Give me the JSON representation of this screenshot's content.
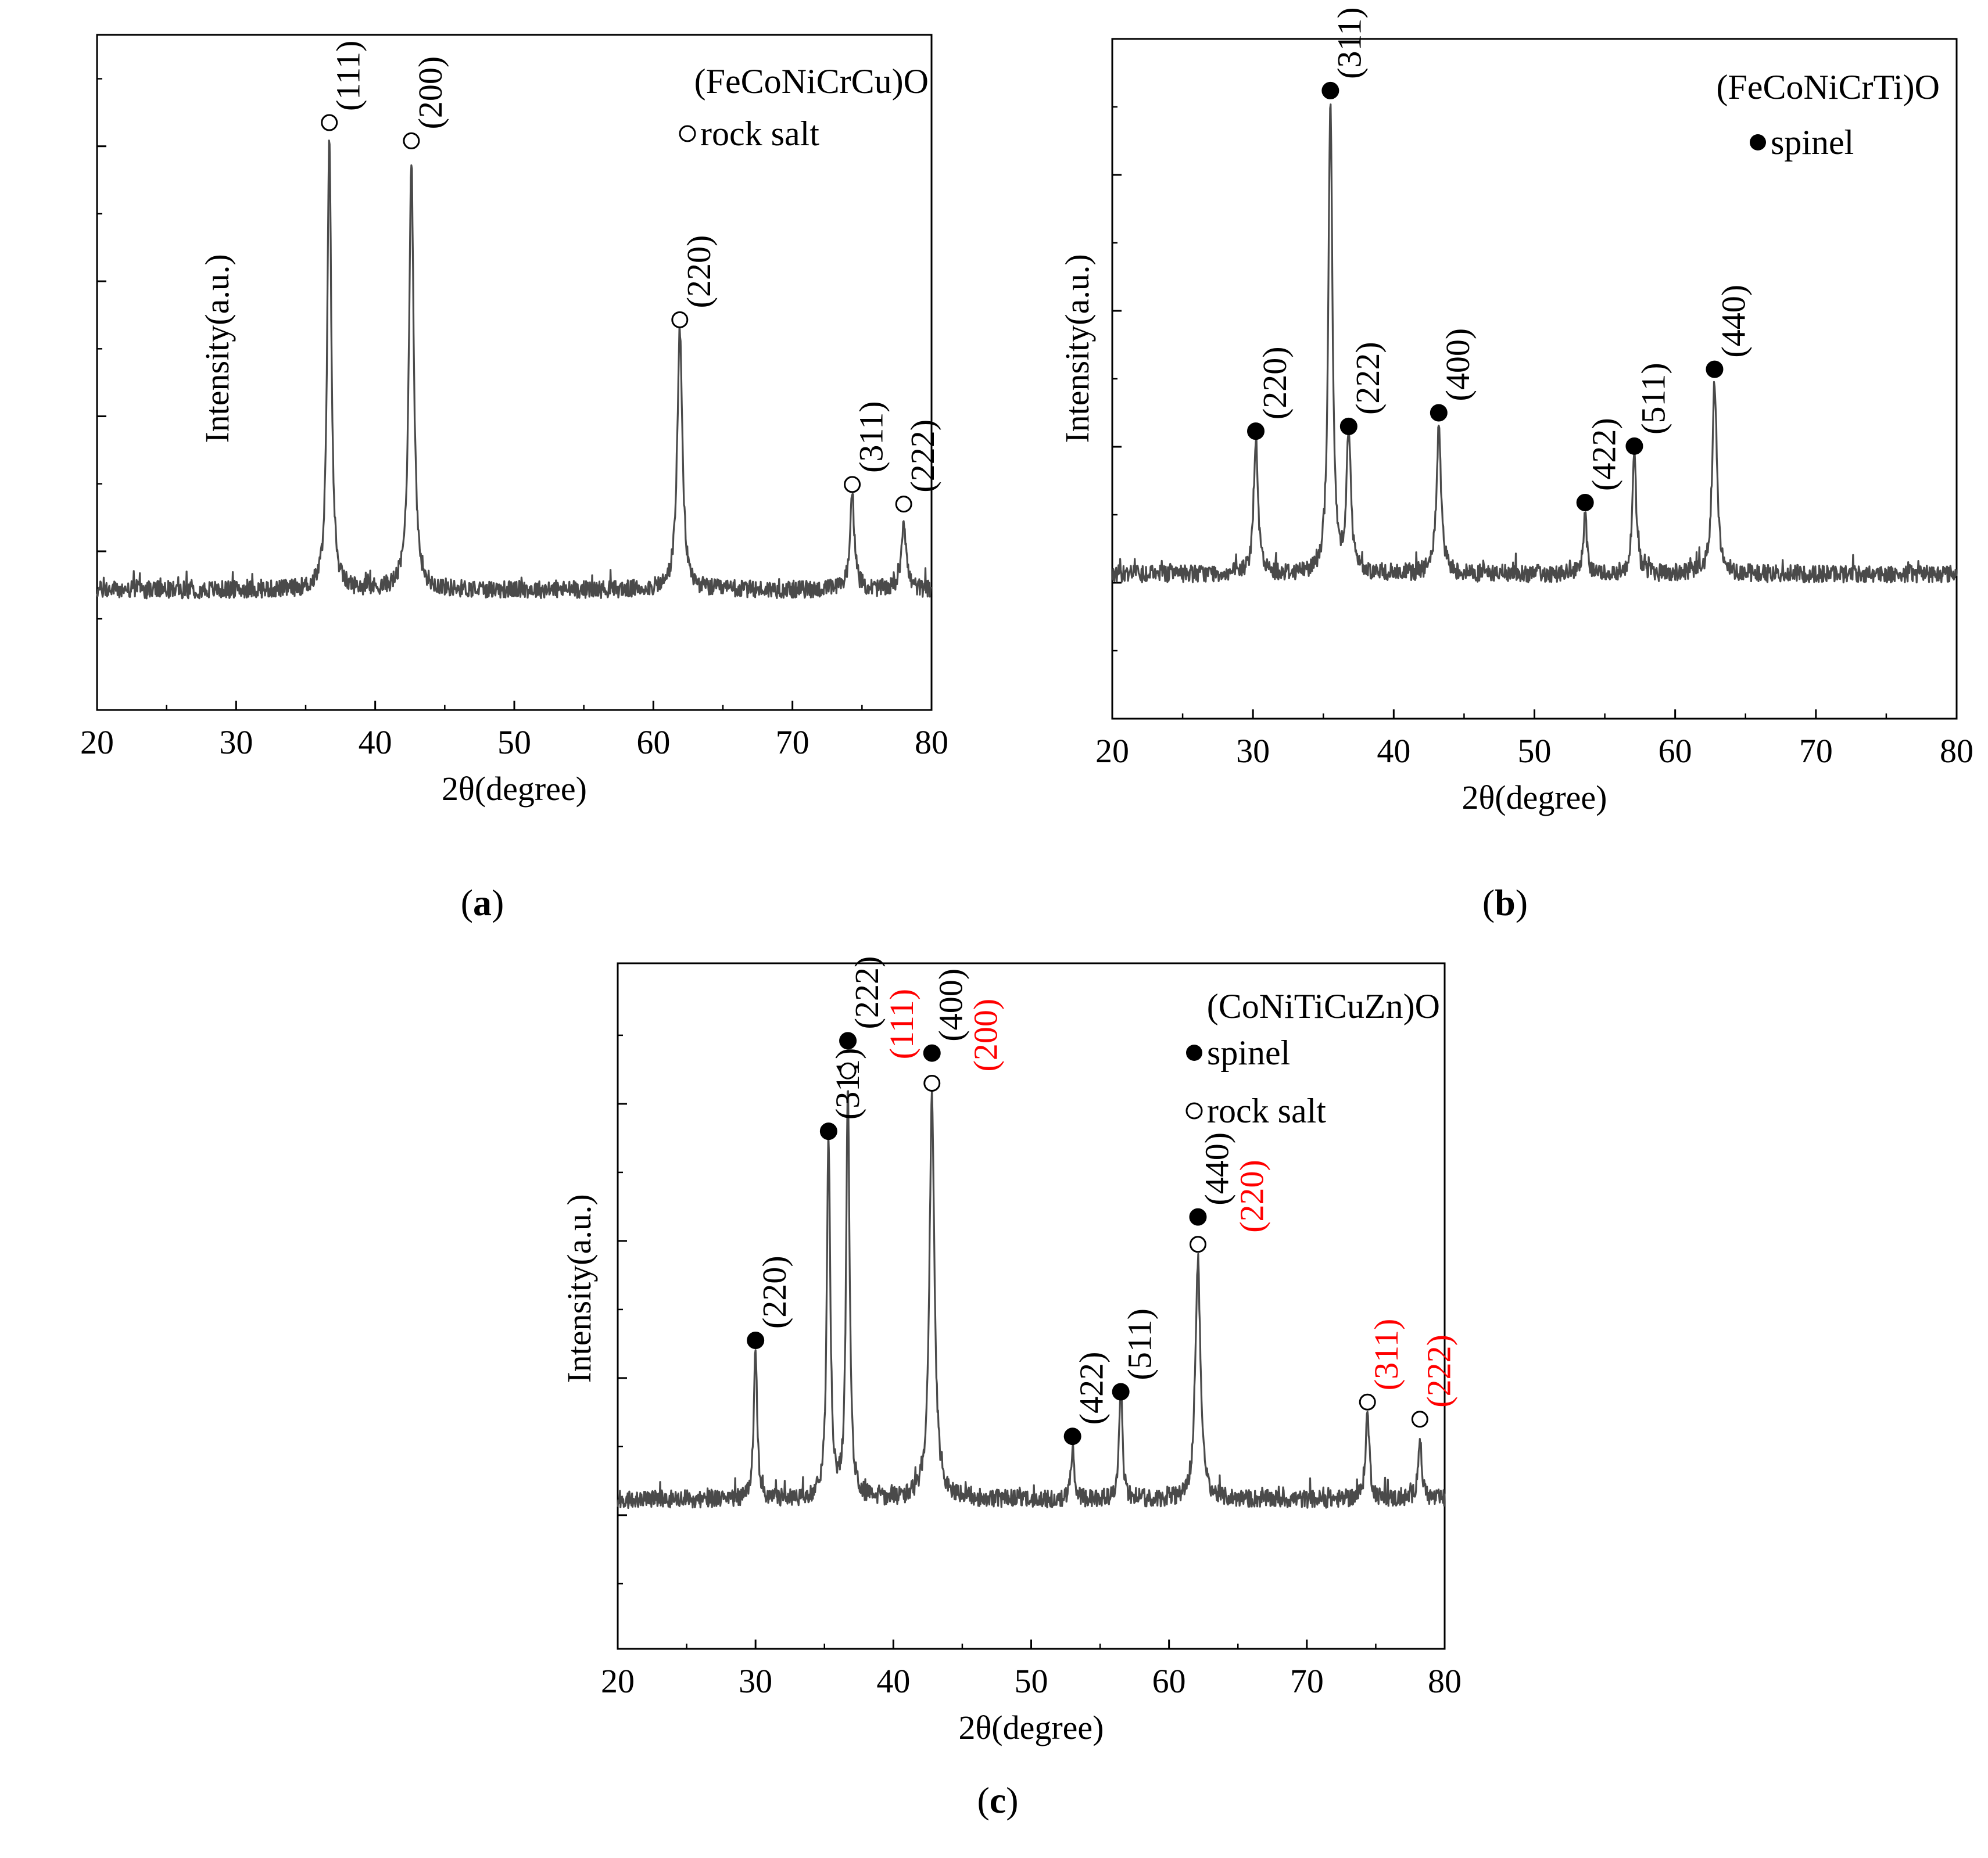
{
  "chart_data": [
    {
      "panel": "a",
      "panel_label": "(a)",
      "type": "line",
      "title": "(FeCoNiCrCu)O",
      "xlabel": "2θ(degree)",
      "ylabel": "Intensity(a.u.)",
      "xlim": [
        20,
        80
      ],
      "xticks": [
        20,
        30,
        40,
        50,
        60,
        70,
        80
      ],
      "ylim": [
        0,
        1
      ],
      "baseline": 0.165,
      "grid": false,
      "legend": [
        {
          "symbol": "open",
          "label": "rock salt"
        }
      ],
      "series": [
        {
          "name": "(FeCoNiCrCu)O",
          "color": "#4a4a4a",
          "peaks": [
            {
              "x": 36.7,
              "y": 0.845,
              "w": 0.17
            },
            {
              "x": 42.6,
              "y": 0.805,
              "w": 0.2
            },
            {
              "x": 61.9,
              "y": 0.55,
              "w": 0.22
            },
            {
              "x": 74.3,
              "y": 0.3,
              "w": 0.2
            },
            {
              "x": 78.0,
              "y": 0.27,
              "w": 0.2
            }
          ]
        }
      ],
      "annotations": [
        {
          "x": 36.7,
          "y": 0.87,
          "symbol": "open",
          "label": "(111)",
          "color": "#000000"
        },
        {
          "x": 42.6,
          "y": 0.843,
          "symbol": "open",
          "label": "(200)",
          "color": "#000000"
        },
        {
          "x": 61.9,
          "y": 0.578,
          "symbol": "open",
          "label": "(220)",
          "color": "#000000"
        },
        {
          "x": 74.3,
          "y": 0.334,
          "symbol": "open",
          "label": "(311)",
          "color": "#000000"
        },
        {
          "x": 78.0,
          "y": 0.305,
          "symbol": "open",
          "label": "(222)",
          "color": "#000000"
        }
      ]
    },
    {
      "panel": "b",
      "panel_label": "(b)",
      "type": "line",
      "title": "(FeCoNiCrTi)O",
      "xlabel": "2θ(degree)",
      "ylabel": "Intensity(a.u.)",
      "xlim": [
        20,
        80
      ],
      "xticks": [
        20,
        30,
        40,
        50,
        60,
        70,
        80
      ],
      "ylim": [
        0,
        1
      ],
      "baseline": 0.2,
      "grid": false,
      "legend": [
        {
          "symbol": "filled",
          "label": "spinel"
        }
      ],
      "series": [
        {
          "name": "(FeCoNiCrTi)O",
          "color": "#4a4a4a",
          "peaks": [
            {
              "x": 30.2,
              "y": 0.4,
              "w": 0.18
            },
            {
              "x": 35.5,
              "y": 0.9,
              "w": 0.17
            },
            {
              "x": 36.8,
              "y": 0.41,
              "w": 0.18
            },
            {
              "x": 43.2,
              "y": 0.41,
              "w": 0.2
            },
            {
              "x": 53.6,
              "y": 0.29,
              "w": 0.13
            },
            {
              "x": 57.1,
              "y": 0.38,
              "w": 0.16
            },
            {
              "x": 62.8,
              "y": 0.48,
              "w": 0.2
            }
          ]
        }
      ],
      "annotations": [
        {
          "x": 30.2,
          "y": 0.423,
          "symbol": "filled",
          "label": "(220)",
          "color": "#000000"
        },
        {
          "x": 35.5,
          "y": 0.924,
          "symbol": "filled",
          "label": "(311)",
          "color": "#000000"
        },
        {
          "x": 36.8,
          "y": 0.43,
          "symbol": "filled",
          "label": "(222)",
          "color": "#000000"
        },
        {
          "x": 43.2,
          "y": 0.45,
          "symbol": "filled",
          "label": "(400)",
          "color": "#000000"
        },
        {
          "x": 53.6,
          "y": 0.318,
          "symbol": "filled",
          "label": "(422)",
          "color": "#000000"
        },
        {
          "x": 57.1,
          "y": 0.401,
          "symbol": "filled",
          "label": "(511)",
          "color": "#000000"
        },
        {
          "x": 62.8,
          "y": 0.514,
          "symbol": "filled",
          "label": "(440)",
          "color": "#000000"
        }
      ]
    },
    {
      "panel": "c",
      "panel_label": "(c)",
      "type": "line",
      "title": "(CoNiTiCuZn)O",
      "xlabel": "2θ(degree)",
      "ylabel": "Intensity(a.u.)",
      "xlim": [
        20,
        80
      ],
      "xticks": [
        20,
        30,
        40,
        50,
        60,
        70,
        80
      ],
      "ylim": [
        0,
        1
      ],
      "baseline": 0.205,
      "grid": false,
      "legend": [
        {
          "symbol": "filled",
          "label": "spinel"
        },
        {
          "symbol": "open",
          "label": "rock salt"
        }
      ],
      "series": [
        {
          "name": "(CoNiTiCuZn)O",
          "color": "#4a4a4a",
          "peaks": [
            {
              "x": 30.0,
              "y": 0.42,
              "w": 0.15
            },
            {
              "x": 35.3,
              "y": 0.73,
              "w": 0.15
            },
            {
              "x": 36.7,
              "y": 0.8,
              "w": 0.15
            },
            {
              "x": 42.8,
              "y": 0.79,
              "w": 0.22
            },
            {
              "x": 53.0,
              "y": 0.28,
              "w": 0.13
            },
            {
              "x": 56.5,
              "y": 0.38,
              "w": 0.14
            },
            {
              "x": 62.1,
              "y": 0.55,
              "w": 0.22
            },
            {
              "x": 74.4,
              "y": 0.33,
              "w": 0.17
            },
            {
              "x": 78.2,
              "y": 0.29,
              "w": 0.17
            }
          ]
        }
      ],
      "annotations": [
        {
          "x": 30.0,
          "y": 0.45,
          "symbol": "filled",
          "label": "(220)",
          "color": "#000000"
        },
        {
          "x": 35.3,
          "y": 0.755,
          "symbol": "filled",
          "label": "(311)",
          "color": "#000000"
        },
        {
          "x": 36.7,
          "y": 0.887,
          "symbol": "filled",
          "label": "(222)",
          "color": "#000000"
        },
        {
          "x": 36.7,
          "y": 0.843,
          "symbol": "open",
          "label": "(111)",
          "color": "#ff0000"
        },
        {
          "x": 42.8,
          "y": 0.869,
          "symbol": "filled",
          "label": "(400)",
          "color": "#000000"
        },
        {
          "x": 42.8,
          "y": 0.825,
          "symbol": "open",
          "label": "(200)",
          "color": "#ff0000"
        },
        {
          "x": 53.0,
          "y": 0.31,
          "symbol": "filled",
          "label": "(422)",
          "color": "#000000"
        },
        {
          "x": 56.5,
          "y": 0.375,
          "symbol": "filled",
          "label": "(511)",
          "color": "#000000"
        },
        {
          "x": 62.1,
          "y": 0.63,
          "symbol": "filled",
          "label": "(440)",
          "color": "#000000"
        },
        {
          "x": 62.1,
          "y": 0.59,
          "symbol": "open",
          "label": "(220)",
          "color": "#ff0000"
        },
        {
          "x": 74.4,
          "y": 0.36,
          "symbol": "open",
          "label": "(311)",
          "color": "#ff0000"
        },
        {
          "x": 78.2,
          "y": 0.335,
          "symbol": "open",
          "label": "(222)",
          "color": "#ff0000"
        }
      ]
    }
  ]
}
